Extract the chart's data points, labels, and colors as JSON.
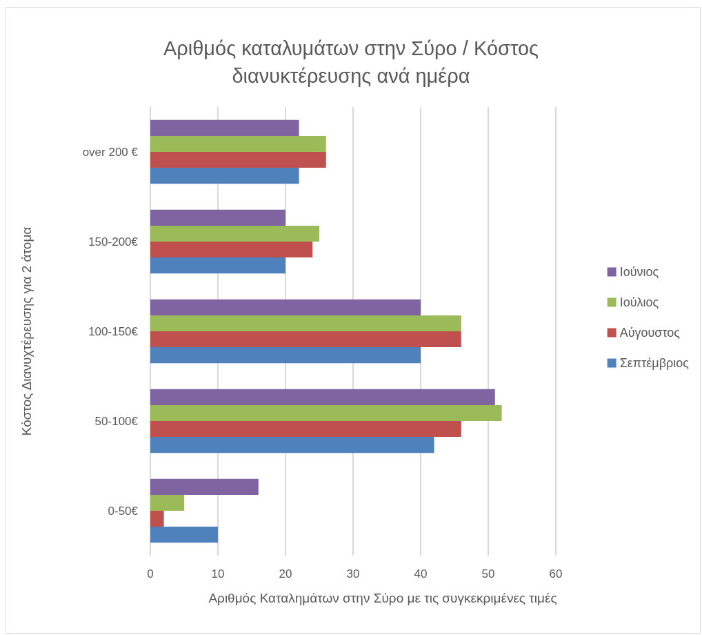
{
  "chart_data": {
    "type": "bar",
    "orientation": "horizontal",
    "title": "Αριθμός καταλυμάτων στην Σύρο / Κόστος διανυκτέρευσης ανά ημέρα",
    "xlabel": "Αριθμός Καταλημάτων στην Σύρο με τις συγκεκριμένες τιμές",
    "ylabel": "Κόστος Διανυχτέρευσης για 2 άτομα",
    "categories": [
      "over 200 €",
      "150-200€",
      "100-150€",
      "50-100€",
      "0-50€"
    ],
    "series": [
      {
        "name": "Ιούνιος",
        "color": "#8064a2",
        "values": [
          22,
          20,
          40,
          51,
          16
        ]
      },
      {
        "name": "Ιούλιος",
        "color": "#9bbb59",
        "values": [
          26,
          25,
          46,
          52,
          5
        ]
      },
      {
        "name": "Αύγουστος",
        "color": "#c0504d",
        "values": [
          26,
          24,
          46,
          46,
          2
        ]
      },
      {
        "name": "Σεπτέμβριος",
        "color": "#4f81bd",
        "values": [
          22,
          20,
          40,
          42,
          10
        ]
      }
    ],
    "xlim": [
      0,
      60
    ],
    "xticks": [
      0,
      10,
      20,
      30,
      40,
      50,
      60
    ],
    "grid": "x",
    "legend": "right"
  }
}
